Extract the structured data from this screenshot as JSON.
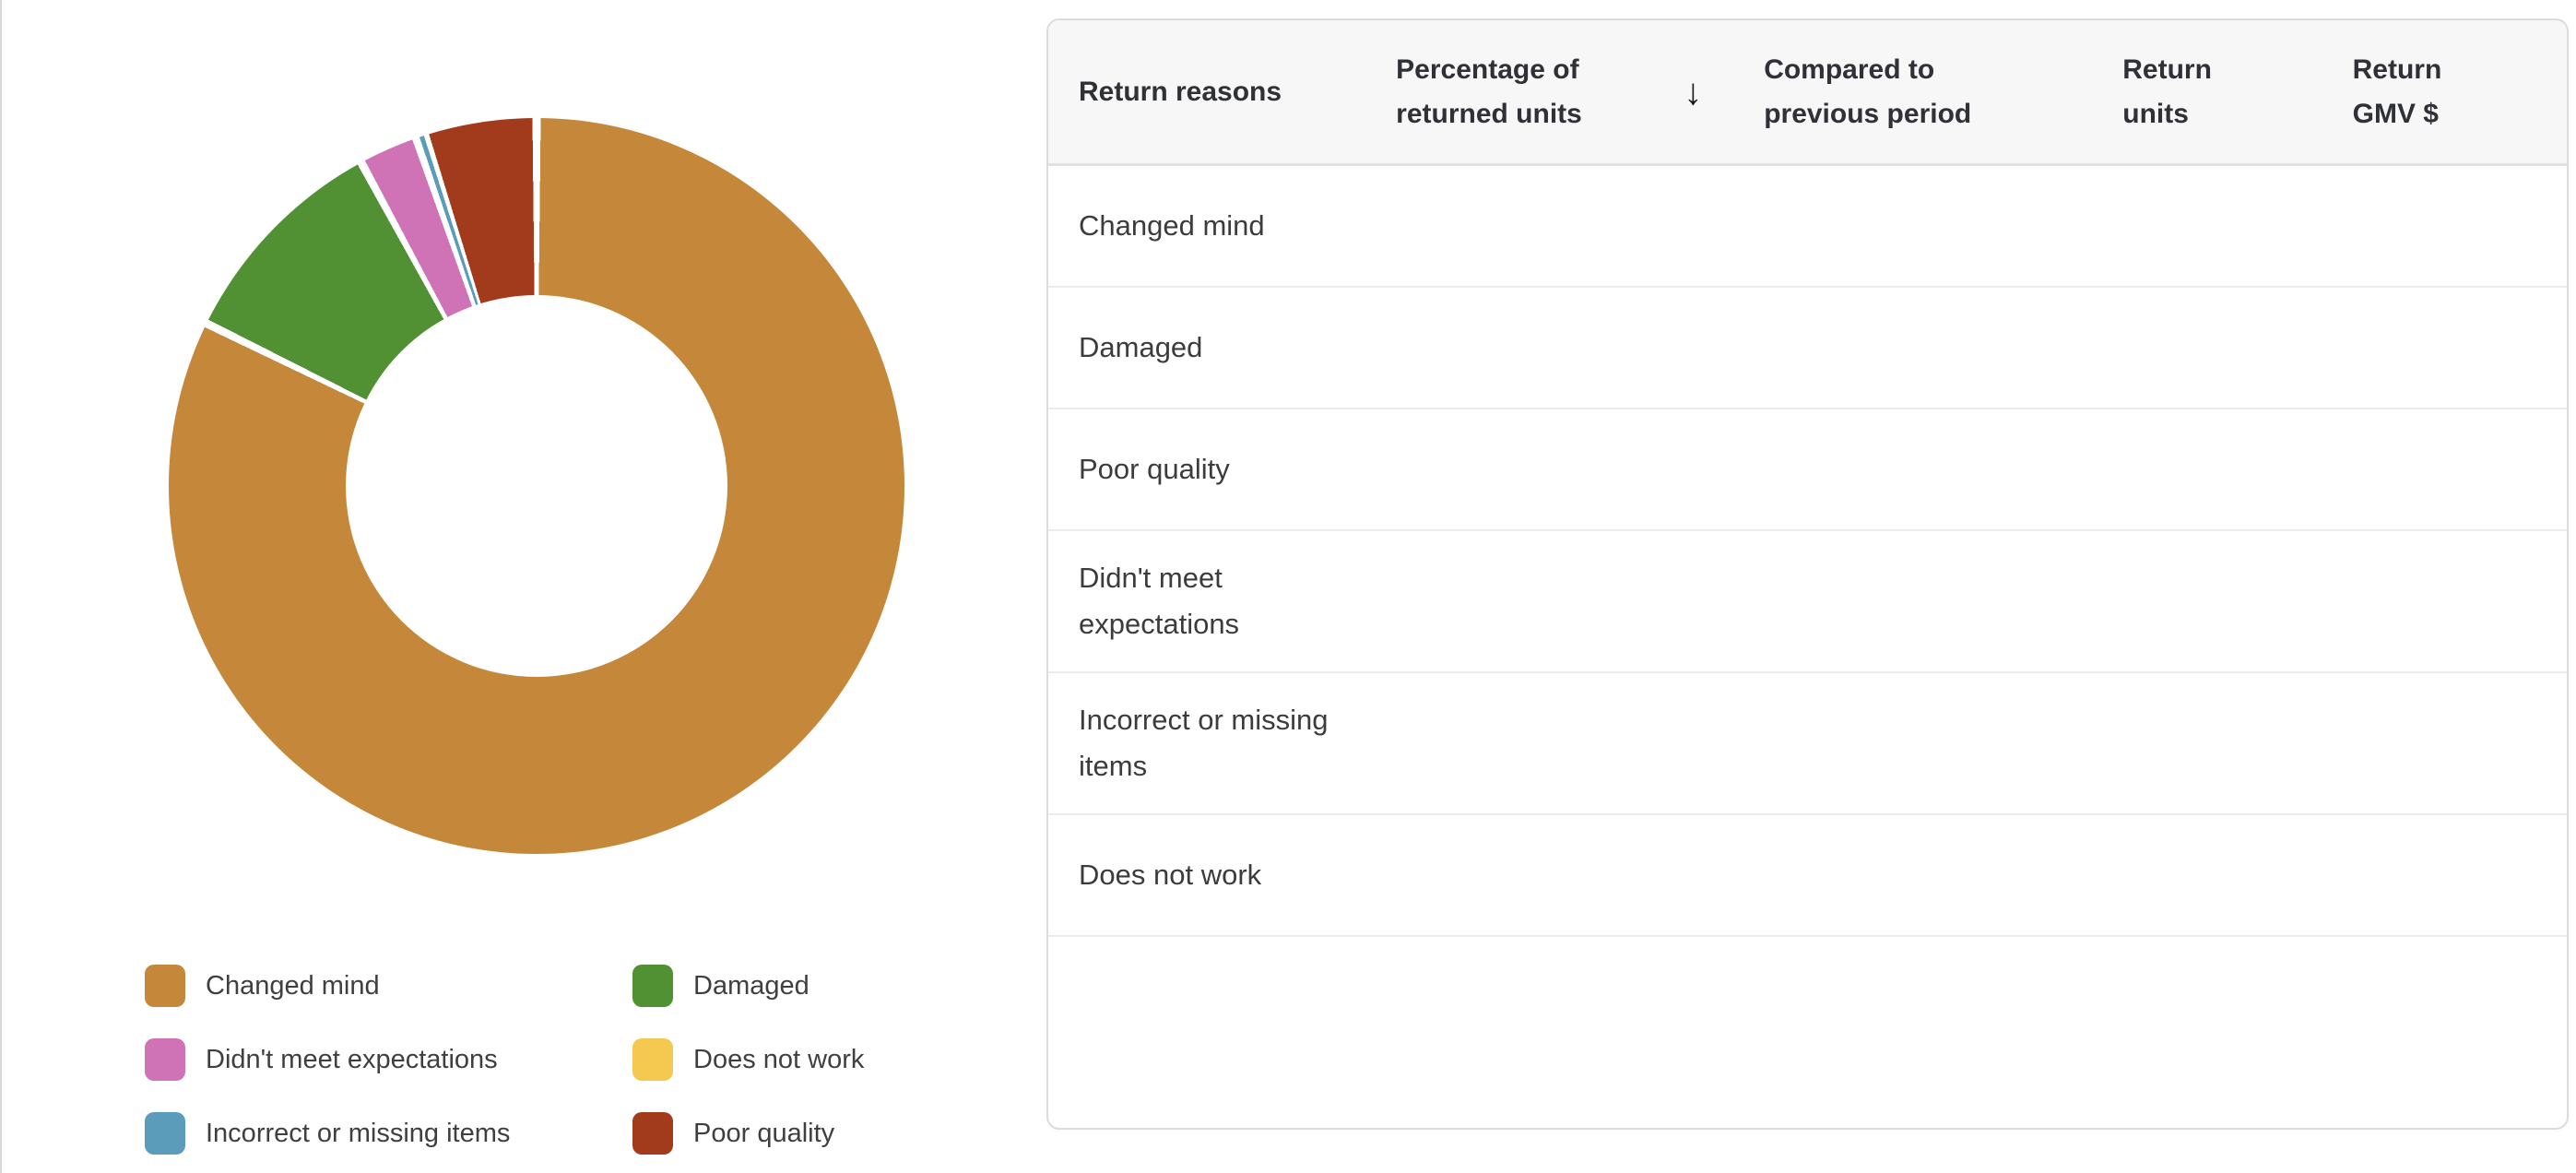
{
  "page": {
    "background_color": "#ffffff",
    "left_edge_divider_color": "#d8d8d8"
  },
  "chart_data": {
    "type": "pie",
    "variant": "donut",
    "title": "",
    "legend_position": "bottom-left",
    "direction": "clockwise",
    "start_angle_deg": 0,
    "hole_ratio": 0.52,
    "slice_gap_color": "#ffffff",
    "categories": [
      "Changed mind",
      "Damaged",
      "Didn't meet expectations",
      "Does not work",
      "Incorrect or missing items",
      "Poor quality"
    ],
    "values": [
      82.2,
      9.8,
      2.6,
      0.1,
      0.3,
      4.9
    ],
    "unit": "% of returned units (estimated from arc angles)",
    "colors": [
      "#c5883a",
      "#519133",
      "#cf72b6",
      "#f5c950",
      "#5a9cba",
      "#a23a1c"
    ]
  },
  "table": {
    "sorted_by": "Percentage of returned units",
    "sort_direction": "descending",
    "sort_icon": "↓",
    "headers": [
      "Return reasons",
      "Percentage of\nreturned units",
      "Compared to\nprevious period",
      "Return\nunits",
      "Return\nGMV $"
    ],
    "rows": [
      {
        "reason": "Changed mind",
        "percentage": "",
        "compared_to_previous_period": "",
        "return_units": "",
        "return_gmv": ""
      },
      {
        "reason": "Damaged",
        "percentage": "",
        "compared_to_previous_period": "",
        "return_units": "",
        "return_gmv": ""
      },
      {
        "reason": "Poor quality",
        "percentage": "",
        "compared_to_previous_period": "",
        "return_units": "",
        "return_gmv": ""
      },
      {
        "reason": "Didn't meet expectations",
        "percentage": "",
        "compared_to_previous_period": "",
        "return_units": "",
        "return_gmv": ""
      },
      {
        "reason": "Incorrect or missing items",
        "percentage": "",
        "compared_to_previous_period": "",
        "return_units": "",
        "return_gmv": ""
      },
      {
        "reason": "Does not work",
        "percentage": "",
        "compared_to_previous_period": "",
        "return_units": "",
        "return_gmv": ""
      }
    ]
  }
}
